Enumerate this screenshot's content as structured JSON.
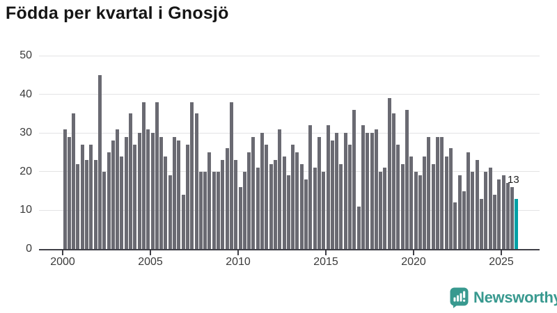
{
  "header": {
    "title": "Födda per kvartal i Gnosjö"
  },
  "chart_data": {
    "type": "bar",
    "title": "Födda per kvartal i Gnosjö",
    "x_unit": "quarter",
    "start_year": 2000,
    "end_year": 2025,
    "values": [
      31,
      29,
      35,
      22,
      27,
      23,
      27,
      23,
      45,
      20,
      25,
      28,
      31,
      24,
      29,
      35,
      27,
      30,
      38,
      31,
      30,
      38,
      29,
      24,
      19,
      29,
      28,
      14,
      27,
      38,
      35,
      20,
      20,
      25,
      20,
      20,
      23,
      26,
      38,
      23,
      16,
      20,
      25,
      29,
      21,
      30,
      27,
      22,
      23,
      31,
      24,
      19,
      27,
      25,
      22,
      18,
      32,
      21,
      29,
      20,
      32,
      28,
      30,
      22,
      30,
      27,
      36,
      11,
      32,
      30,
      30,
      31,
      20,
      21,
      39,
      35,
      27,
      22,
      36,
      24,
      20,
      19,
      24,
      29,
      22,
      29,
      29,
      24,
      26,
      12,
      19,
      15,
      25,
      20,
      23,
      13,
      20,
      21,
      14,
      18,
      19,
      17,
      16,
      13
    ],
    "x_tick_years": [
      2000,
      2005,
      2010,
      2015,
      2020,
      2025
    ],
    "y_ticks": [
      0,
      10,
      20,
      30,
      40,
      50
    ],
    "ylim": [
      0,
      50
    ],
    "grid": "horizontal",
    "legend": "none",
    "bar_color": "#6a6a72",
    "highlight_last_bar": true,
    "highlight_color": "#00a1a6",
    "last_value_annotation": "13"
  },
  "footer": {
    "brand": "Newsworthy",
    "brand_color": "#38998f",
    "logo_icon": "speech-bubble-bar-chart-icon"
  }
}
